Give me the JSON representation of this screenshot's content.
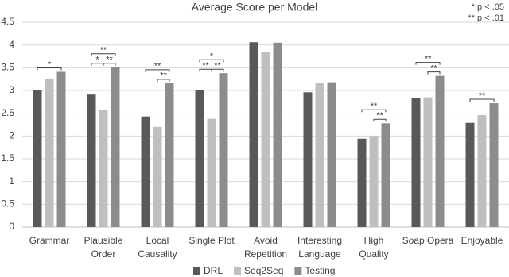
{
  "chart_data": {
    "type": "bar",
    "title": "Average Score per Model",
    "notes": [
      "* p < .05",
      "** p < .01"
    ],
    "categories": [
      "Grammar",
      "Plausible\nOrder",
      "Local\nCausality",
      "Single Plot",
      "Avoid\nRepetition",
      "Interesting\nLanguage",
      "High\nQuality",
      "Soap Opera",
      "Enjoyable"
    ],
    "series": [
      {
        "name": "DRL",
        "color": "#595959",
        "values": [
          3.0,
          2.91,
          2.43,
          3.0,
          4.06,
          2.96,
          1.94,
          2.83,
          2.29
        ]
      },
      {
        "name": "Seq2Seq",
        "color": "#bfbfbf",
        "values": [
          3.26,
          2.57,
          2.2,
          2.38,
          3.85,
          3.17,
          2.0,
          2.85,
          2.46
        ]
      },
      {
        "name": "Testing",
        "color": "#8c8c8c",
        "values": [
          3.41,
          3.51,
          3.16,
          3.38,
          4.05,
          3.18,
          2.28,
          3.32,
          2.72
        ]
      }
    ],
    "annotations": [
      {
        "text": "*",
        "category": "Grammar",
        "between": [
          "DRL",
          "Testing"
        ]
      },
      {
        "text": "**",
        "category": "Plausible\nOrder",
        "between": [
          "DRL",
          "Testing"
        ]
      },
      {
        "text": "*",
        "category": "Plausible\nOrder",
        "between": [
          "DRL",
          "Seq2Seq"
        ]
      },
      {
        "text": "**",
        "category": "Plausible\nOrder",
        "between": [
          "Seq2Seq",
          "Testing"
        ]
      },
      {
        "text": "**",
        "category": "Local\nCausality",
        "between": [
          "DRL",
          "Testing"
        ]
      },
      {
        "text": "**",
        "category": "Local\nCausality",
        "between": [
          "Seq2Seq",
          "Testing"
        ]
      },
      {
        "text": "*",
        "category": "Single Plot",
        "between": [
          "DRL",
          "Testing"
        ]
      },
      {
        "text": "**",
        "category": "Single Plot",
        "between": [
          "DRL",
          "Seq2Seq"
        ]
      },
      {
        "text": "**",
        "category": "Single Plot",
        "between": [
          "Seq2Seq",
          "Testing"
        ]
      },
      {
        "text": "**",
        "category": "High\nQuality",
        "between": [
          "DRL",
          "Testing"
        ]
      },
      {
        "text": "**",
        "category": "High\nQuality",
        "between": [
          "Seq2Seq",
          "Testing"
        ]
      },
      {
        "text": "**",
        "category": "Soap Opera",
        "between": [
          "DRL",
          "Testing"
        ]
      },
      {
        "text": "**",
        "category": "Soap Opera",
        "between": [
          "Seq2Seq",
          "Testing"
        ]
      },
      {
        "text": "**",
        "category": "Enjoyable",
        "between": [
          "DRL",
          "Testing"
        ]
      }
    ],
    "ylim": [
      0,
      4.5
    ],
    "yticks": [
      0,
      0.5,
      1,
      1.5,
      2,
      2.5,
      3,
      3.5,
      4,
      4.5
    ],
    "grid": true,
    "legend": "bottom"
  }
}
